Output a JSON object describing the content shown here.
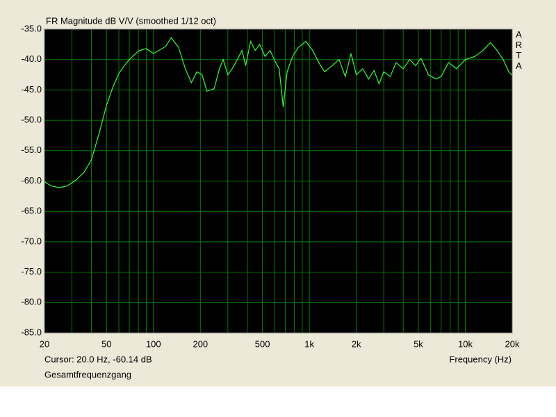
{
  "chart_data": {
    "type": "line",
    "title": "FR Magnitude dB V/V (smoothed 1/12 oct)",
    "watermark": "ARTA",
    "cursor": "Cursor: 20.0 Hz, -60.14 dB",
    "xlabel": "Frequency (Hz)",
    "xscale": "log",
    "grid": true,
    "grid_color": "#008000",
    "background": "#000000",
    "xlim": [
      20,
      20000
    ],
    "ylim": [
      -85,
      -35
    ],
    "xticks": [
      20,
      50,
      100,
      200,
      500,
      {
        "value": 1000,
        "label": "1k"
      },
      {
        "value": 2000,
        "label": "2k"
      },
      {
        "value": 5000,
        "label": "5k"
      },
      {
        "value": 10000,
        "label": "10k"
      },
      {
        "value": 20000,
        "label": "20k"
      }
    ],
    "x_minor_grid": [
      30,
      40,
      60,
      70,
      80,
      90,
      300,
      400,
      600,
      700,
      800,
      900,
      3000,
      4000,
      6000,
      7000,
      8000,
      9000
    ],
    "yticks": [
      {
        "value": -35,
        "label": "-35.0"
      },
      {
        "value": -40,
        "label": "-40.0"
      },
      {
        "value": -45,
        "label": "-45.0"
      },
      {
        "value": -50,
        "label": "-50.0"
      },
      {
        "value": -55,
        "label": "-55.0"
      },
      {
        "value": -60,
        "label": "-60.0"
      },
      {
        "value": -65,
        "label": "-65.0"
      },
      {
        "value": -70,
        "label": "-70.0"
      },
      {
        "value": -75,
        "label": "-75.0"
      },
      {
        "value": -80,
        "label": "-80.0"
      },
      {
        "value": -85,
        "label": "-85.0"
      }
    ],
    "x": [
      20,
      22,
      25,
      28,
      32,
      36,
      40,
      45,
      50,
      55,
      60,
      65,
      70,
      80,
      90,
      100,
      110,
      120,
      130,
      145,
      160,
      175,
      190,
      205,
      220,
      245,
      265,
      280,
      300,
      320,
      345,
      370,
      390,
      420,
      450,
      480,
      520,
      560,
      600,
      640,
      680,
      720,
      780,
      850,
      950,
      1050,
      1150,
      1250,
      1400,
      1550,
      1700,
      1850,
      2000,
      2200,
      2400,
      2600,
      2800,
      3000,
      3300,
      3600,
      4000,
      4400,
      4800,
      5200,
      5800,
      6500,
      7000,
      7800,
      8800,
      10000,
      11500,
      13000,
      14500,
      16000,
      17500,
      19000,
      20000
    ],
    "series": [
      {
        "name": "Gesamtfrequenzgang",
        "color": "#33ff33",
        "values": [
          -60.1,
          -60.8,
          -61.1,
          -60.8,
          -59.8,
          -58.5,
          -56.5,
          -52,
          -47.5,
          -44.5,
          -42.3,
          -41,
          -40,
          -38.6,
          -38.2,
          -39,
          -38.4,
          -37.8,
          -36.4,
          -38,
          -41.5,
          -43.8,
          -42,
          -42.5,
          -45.2,
          -44.8,
          -41.5,
          -40,
          -42.5,
          -41.5,
          -40,
          -38.5,
          -41,
          -37,
          -38.5,
          -37.5,
          -39.5,
          -38.5,
          -40.2,
          -41.5,
          -47.8,
          -42,
          -39.5,
          -38,
          -37,
          -38.5,
          -40.5,
          -42,
          -41,
          -40,
          -42.8,
          -39,
          -42.5,
          -41.5,
          -43.2,
          -41.8,
          -44,
          -42,
          -42.8,
          -40.5,
          -41.5,
          -40,
          -41,
          -39.8,
          -42.5,
          -43.2,
          -42.8,
          -40.5,
          -41.5,
          -40,
          -39.5,
          -38.5,
          -37.2,
          -38.5,
          -40,
          -42,
          -42.6
        ]
      }
    ]
  }
}
